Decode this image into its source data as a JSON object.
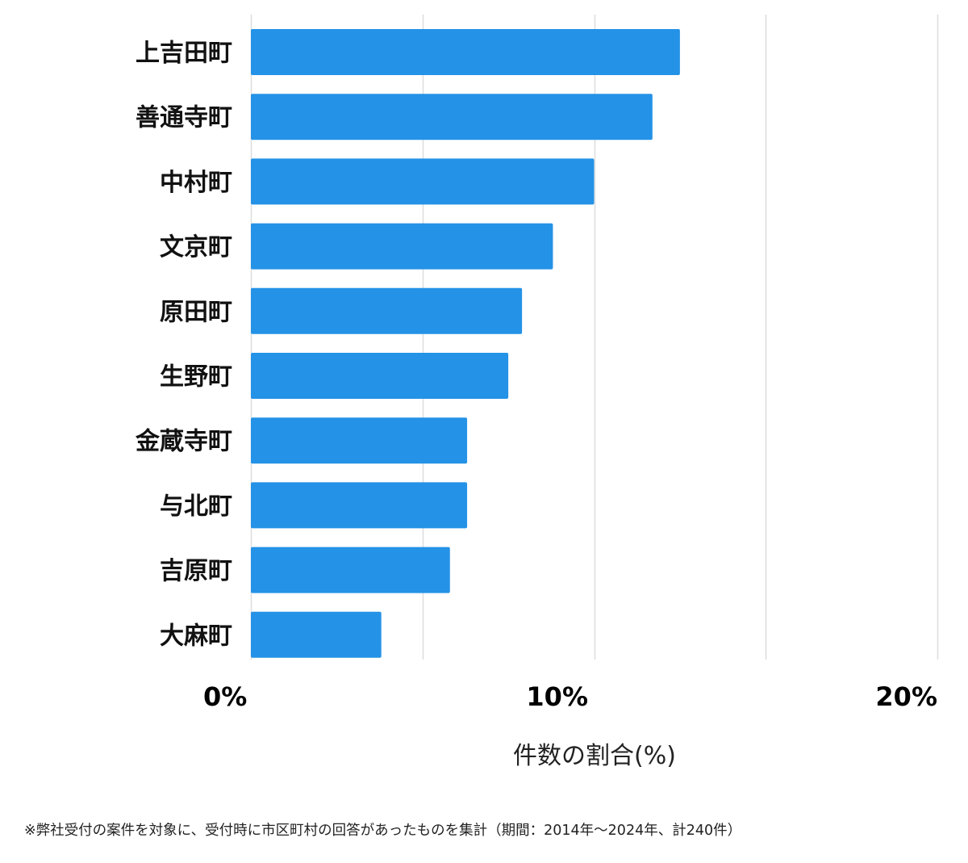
{
  "chart_data": {
    "type": "bar",
    "orientation": "horizontal",
    "categories": [
      "上吉田町",
      "善通寺町",
      "中村町",
      "文京町",
      "原田町",
      "生野町",
      "金蔵寺町",
      "与北町",
      "吉原町",
      "大麻町"
    ],
    "values": [
      12.5,
      11.7,
      10.0,
      8.8,
      7.9,
      7.5,
      6.3,
      6.3,
      5.8,
      3.8
    ],
    "xlim": [
      0,
      20
    ],
    "xticks": [
      0,
      10,
      20
    ],
    "xtick_labels": [
      "0%",
      "10%",
      "20%"
    ],
    "xlabel": "件数の割合(%)",
    "ylabel": "",
    "grid": true,
    "bar_color": "#2492e6",
    "grid_color": "#dddddd"
  },
  "footnote": "※弊社受付の案件を対象に、受付時に市区町村の回答があったものを集計（期間：2014年～2024年、計240件）"
}
